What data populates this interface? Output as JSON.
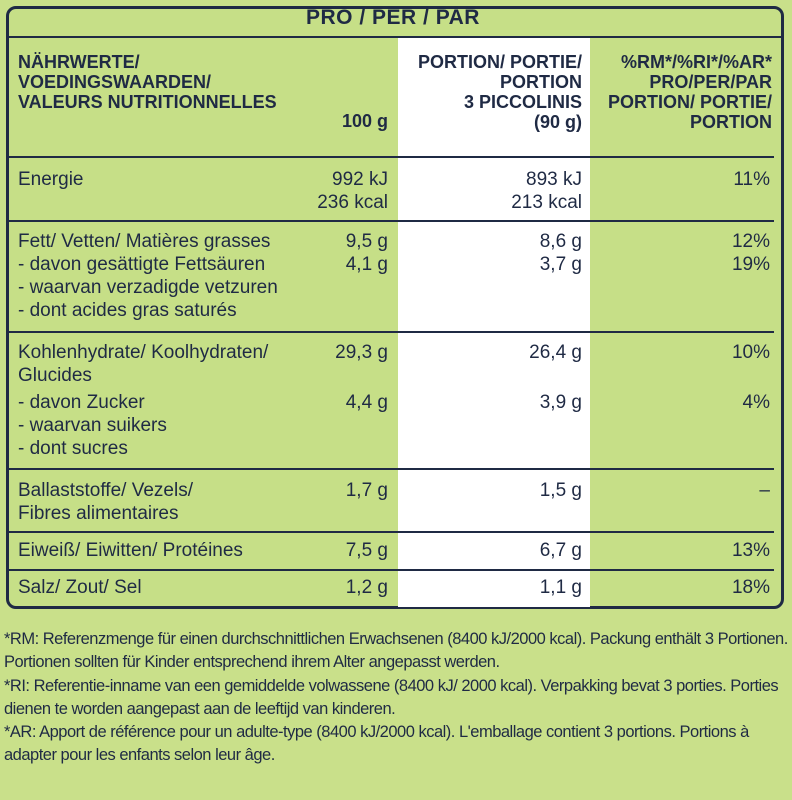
{
  "header": {
    "per_title": "PRO / PER / PAR",
    "col_nutrient": "NÄHRWERTE/\nVOEDINGSWAARDEN/\nVALEURS NUTRITIONNELLES",
    "col_100g": "100 g",
    "col_portion": "PORTION/ PORTIE/\nPORTION\n3 PICCOLINIS\n(90 g)",
    "col_ri": "%RM*/%RI*/%AR*\nPRO/PER/PAR\nPORTION/ PORTIE/\nPORTION"
  },
  "rows": [
    {
      "name": "Energie",
      "per100": "992 kJ\n236 kcal",
      "portion": "893 kJ\n213 kcal",
      "ri": "11%"
    },
    {
      "name": "Fett/ Vetten/ Matières grasses",
      "per100": "9,5 g",
      "portion": "8,6 g",
      "ri": "12%"
    },
    {
      "name": "- davon gesättigte Fettsäuren\n- waarvan verzadigde vetzuren\n- dont acides gras saturés",
      "per100": "4,1 g",
      "portion": "3,7 g",
      "ri": "19%"
    },
    {
      "name": "Kohlenhydrate/ Koolhydraten/\nGlucides",
      "per100": "29,3 g",
      "portion": "26,4 g",
      "ri": "10%"
    },
    {
      "name": "- davon Zucker\n- waarvan suikers\n- dont sucres",
      "per100": "4,4 g",
      "portion": "3,9 g",
      "ri": "4%"
    },
    {
      "name": "Ballaststoffe/ Vezels/\nFibres alimentaires",
      "per100": "1,7 g",
      "portion": "1,5 g",
      "ri": "–"
    },
    {
      "name": "Eiweiß/ Eiwitten/ Protéines",
      "per100": "7,5 g",
      "portion": "6,7 g",
      "ri": "13%"
    },
    {
      "name": "Salz/ Zout/ Sel",
      "per100": "1,2 g",
      "portion": "1,1 g",
      "ri": "18%"
    }
  ],
  "footnotes": [
    "*RM: Referenzmenge für einen durchschnittlichen Erwachsenen (8400 kJ/2000 kcal). Packung enthält 3 Portionen. Portionen sollten für Kinder entsprechend ihrem Alter angepasst werden.",
    "*RI: Referentie-inname van een gemiddelde volwassene (8400 kJ/ 2000 kcal). Verpakking bevat 3 porties. Porties dienen te worden aangepast aan de leeftijd van kinderen.",
    " *AR: Apport de référence pour un adulte-type (8400 kJ/2000 kcal). L'emballage contient 3 portions. Portions à adapter pour les enfants selon leur âge."
  ],
  "colors": {
    "background": "#c9e08a",
    "text": "#1f2a44",
    "highlight_column": "#ffffff"
  }
}
